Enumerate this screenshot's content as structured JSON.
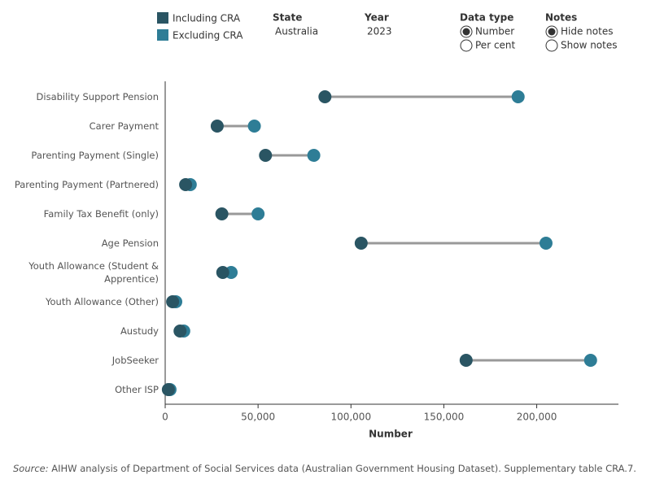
{
  "chart_data": {
    "type": "dumbbell",
    "categories": [
      "Disability Support Pension",
      "Carer Payment",
      "Parenting Payment (Single)",
      "Parenting Payment (Partnered)",
      "Family Tax Benefit (only)",
      "Age Pension",
      "Youth Allowance (Student & Apprentice)",
      "Youth Allowance (Other)",
      "Austudy",
      "JobSeeker",
      "Other ISP"
    ],
    "series": [
      {
        "name": "Including CRA",
        "color": "#2a5563",
        "values": [
          86000,
          28000,
          54000,
          11000,
          30500,
          105500,
          31000,
          4000,
          8000,
          162000,
          1700
        ]
      },
      {
        "name": "Excluding CRA",
        "color": "#2e7d96",
        "values": [
          190000,
          48000,
          80000,
          13500,
          50000,
          205000,
          35500,
          5700,
          10000,
          229000,
          2600
        ]
      }
    ],
    "xlim": [
      0,
      244000
    ],
    "xticks": [
      0,
      {
        "value": 50000,
        "label": "50,000"
      },
      {
        "value": 100000,
        "label": "100,000"
      },
      {
        "value": 150000,
        "label": "150,000"
      },
      {
        "value": 200000,
        "label": "200,000"
      }
    ],
    "xlabel": "Number",
    "connector_color": "#999999"
  },
  "controls": {
    "state": {
      "label": "State",
      "value": "Australia"
    },
    "year": {
      "label": "Year",
      "value": "2023"
    },
    "data_type": {
      "label": "Data type",
      "options": [
        "Number",
        "Per cent"
      ],
      "selected": 0
    },
    "notes": {
      "label": "Notes",
      "options": [
        "Hide notes",
        "Show notes"
      ],
      "selected": 0
    }
  },
  "source": {
    "label": "Source:",
    "text": "AIHW analysis of Department of Social Services data (Australian Government Housing Dataset). Supplementary table CRA.7."
  }
}
